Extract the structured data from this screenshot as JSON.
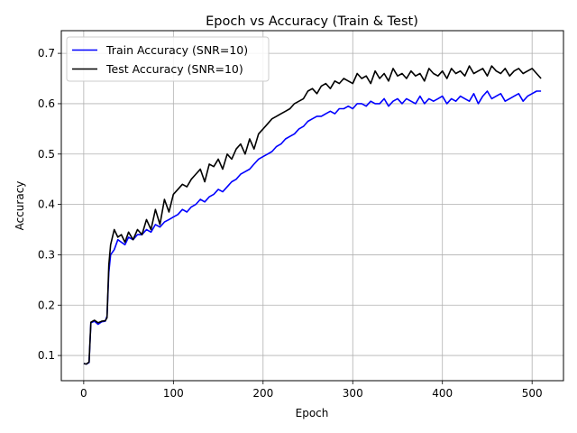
{
  "chart_data": {
    "type": "line",
    "title": "Epoch vs Accuracy (Train & Test)",
    "xlabel": "Epoch",
    "ylabel": "Accuracy",
    "xlim": [
      -25,
      535
    ],
    "ylim": [
      0.05,
      0.745
    ],
    "xticks": [
      0,
      100,
      200,
      300,
      400,
      500
    ],
    "yticks": [
      0.1,
      0.2,
      0.3,
      0.4,
      0.5,
      0.6,
      0.7
    ],
    "ytick_labels": [
      "0.1",
      "0.2",
      "0.3",
      "0.4",
      "0.5",
      "0.6",
      "0.7"
    ],
    "grid": true,
    "legend_position": "upper-left",
    "series": [
      {
        "name": "Train Accuracy (SNR=10)",
        "color": "#0000ff",
        "x": [
          0,
          3,
          6,
          8,
          12,
          16,
          20,
          24,
          26,
          28,
          30,
          34,
          38,
          42,
          46,
          50,
          55,
          60,
          65,
          70,
          75,
          80,
          85,
          90,
          95,
          100,
          105,
          110,
          115,
          120,
          125,
          130,
          135,
          140,
          145,
          150,
          155,
          160,
          165,
          170,
          175,
          180,
          185,
          190,
          195,
          200,
          205,
          210,
          215,
          220,
          225,
          230,
          235,
          240,
          245,
          250,
          255,
          260,
          265,
          270,
          275,
          280,
          285,
          290,
          295,
          300,
          305,
          310,
          315,
          320,
          325,
          330,
          335,
          340,
          345,
          350,
          355,
          360,
          365,
          370,
          375,
          380,
          385,
          390,
          395,
          400,
          405,
          410,
          415,
          420,
          425,
          430,
          435,
          440,
          445,
          450,
          455,
          460,
          465,
          470,
          475,
          480,
          485,
          490,
          495,
          500,
          505,
          510
        ],
        "y": [
          0.084,
          0.083,
          0.086,
          0.165,
          0.168,
          0.162,
          0.167,
          0.168,
          0.178,
          0.265,
          0.3,
          0.31,
          0.33,
          0.325,
          0.32,
          0.335,
          0.33,
          0.34,
          0.34,
          0.35,
          0.345,
          0.36,
          0.355,
          0.365,
          0.37,
          0.375,
          0.38,
          0.39,
          0.385,
          0.395,
          0.4,
          0.41,
          0.405,
          0.415,
          0.42,
          0.43,
          0.425,
          0.435,
          0.445,
          0.45,
          0.46,
          0.465,
          0.47,
          0.48,
          0.49,
          0.495,
          0.5,
          0.505,
          0.515,
          0.52,
          0.53,
          0.535,
          0.54,
          0.55,
          0.555,
          0.565,
          0.57,
          0.575,
          0.575,
          0.58,
          0.585,
          0.58,
          0.59,
          0.59,
          0.595,
          0.59,
          0.6,
          0.6,
          0.595,
          0.605,
          0.6,
          0.6,
          0.61,
          0.595,
          0.605,
          0.61,
          0.6,
          0.61,
          0.605,
          0.6,
          0.615,
          0.6,
          0.61,
          0.605,
          0.61,
          0.615,
          0.6,
          0.61,
          0.605,
          0.615,
          0.61,
          0.605,
          0.62,
          0.6,
          0.615,
          0.625,
          0.61,
          0.615,
          0.62,
          0.605,
          0.61,
          0.615,
          0.62,
          0.605,
          0.615,
          0.62,
          0.625,
          0.625
        ]
      },
      {
        "name": "Test Accuracy (SNR=10)",
        "color": "#000000",
        "x": [
          0,
          3,
          6,
          8,
          12,
          16,
          20,
          24,
          26,
          28,
          30,
          34,
          38,
          42,
          46,
          50,
          55,
          60,
          65,
          70,
          75,
          80,
          85,
          90,
          95,
          100,
          105,
          110,
          115,
          120,
          125,
          130,
          135,
          140,
          145,
          150,
          155,
          160,
          165,
          170,
          175,
          180,
          185,
          190,
          195,
          200,
          205,
          210,
          215,
          220,
          225,
          230,
          235,
          240,
          245,
          250,
          255,
          260,
          265,
          270,
          275,
          280,
          285,
          290,
          295,
          300,
          305,
          310,
          315,
          320,
          325,
          330,
          335,
          340,
          345,
          350,
          355,
          360,
          365,
          370,
          375,
          380,
          385,
          390,
          395,
          400,
          405,
          410,
          415,
          420,
          425,
          430,
          435,
          440,
          445,
          450,
          455,
          460,
          465,
          470,
          475,
          480,
          485,
          490,
          495,
          500,
          505,
          510
        ],
        "y": [
          0.084,
          0.083,
          0.087,
          0.166,
          0.17,
          0.165,
          0.168,
          0.169,
          0.175,
          0.28,
          0.32,
          0.35,
          0.335,
          0.34,
          0.325,
          0.345,
          0.33,
          0.35,
          0.34,
          0.37,
          0.35,
          0.39,
          0.36,
          0.41,
          0.385,
          0.42,
          0.43,
          0.44,
          0.435,
          0.45,
          0.46,
          0.47,
          0.445,
          0.48,
          0.475,
          0.49,
          0.47,
          0.5,
          0.49,
          0.51,
          0.52,
          0.5,
          0.53,
          0.51,
          0.54,
          0.55,
          0.56,
          0.57,
          0.575,
          0.58,
          0.585,
          0.59,
          0.6,
          0.605,
          0.61,
          0.625,
          0.63,
          0.62,
          0.635,
          0.64,
          0.63,
          0.645,
          0.64,
          0.65,
          0.645,
          0.64,
          0.66,
          0.65,
          0.655,
          0.64,
          0.665,
          0.65,
          0.66,
          0.645,
          0.67,
          0.655,
          0.66,
          0.65,
          0.665,
          0.655,
          0.66,
          0.645,
          0.67,
          0.66,
          0.655,
          0.665,
          0.65,
          0.67,
          0.66,
          0.665,
          0.655,
          0.675,
          0.66,
          0.665,
          0.67,
          0.655,
          0.675,
          0.665,
          0.66,
          0.67,
          0.655,
          0.665,
          0.67,
          0.66,
          0.665,
          0.67,
          0.66,
          0.65
        ]
      }
    ]
  }
}
